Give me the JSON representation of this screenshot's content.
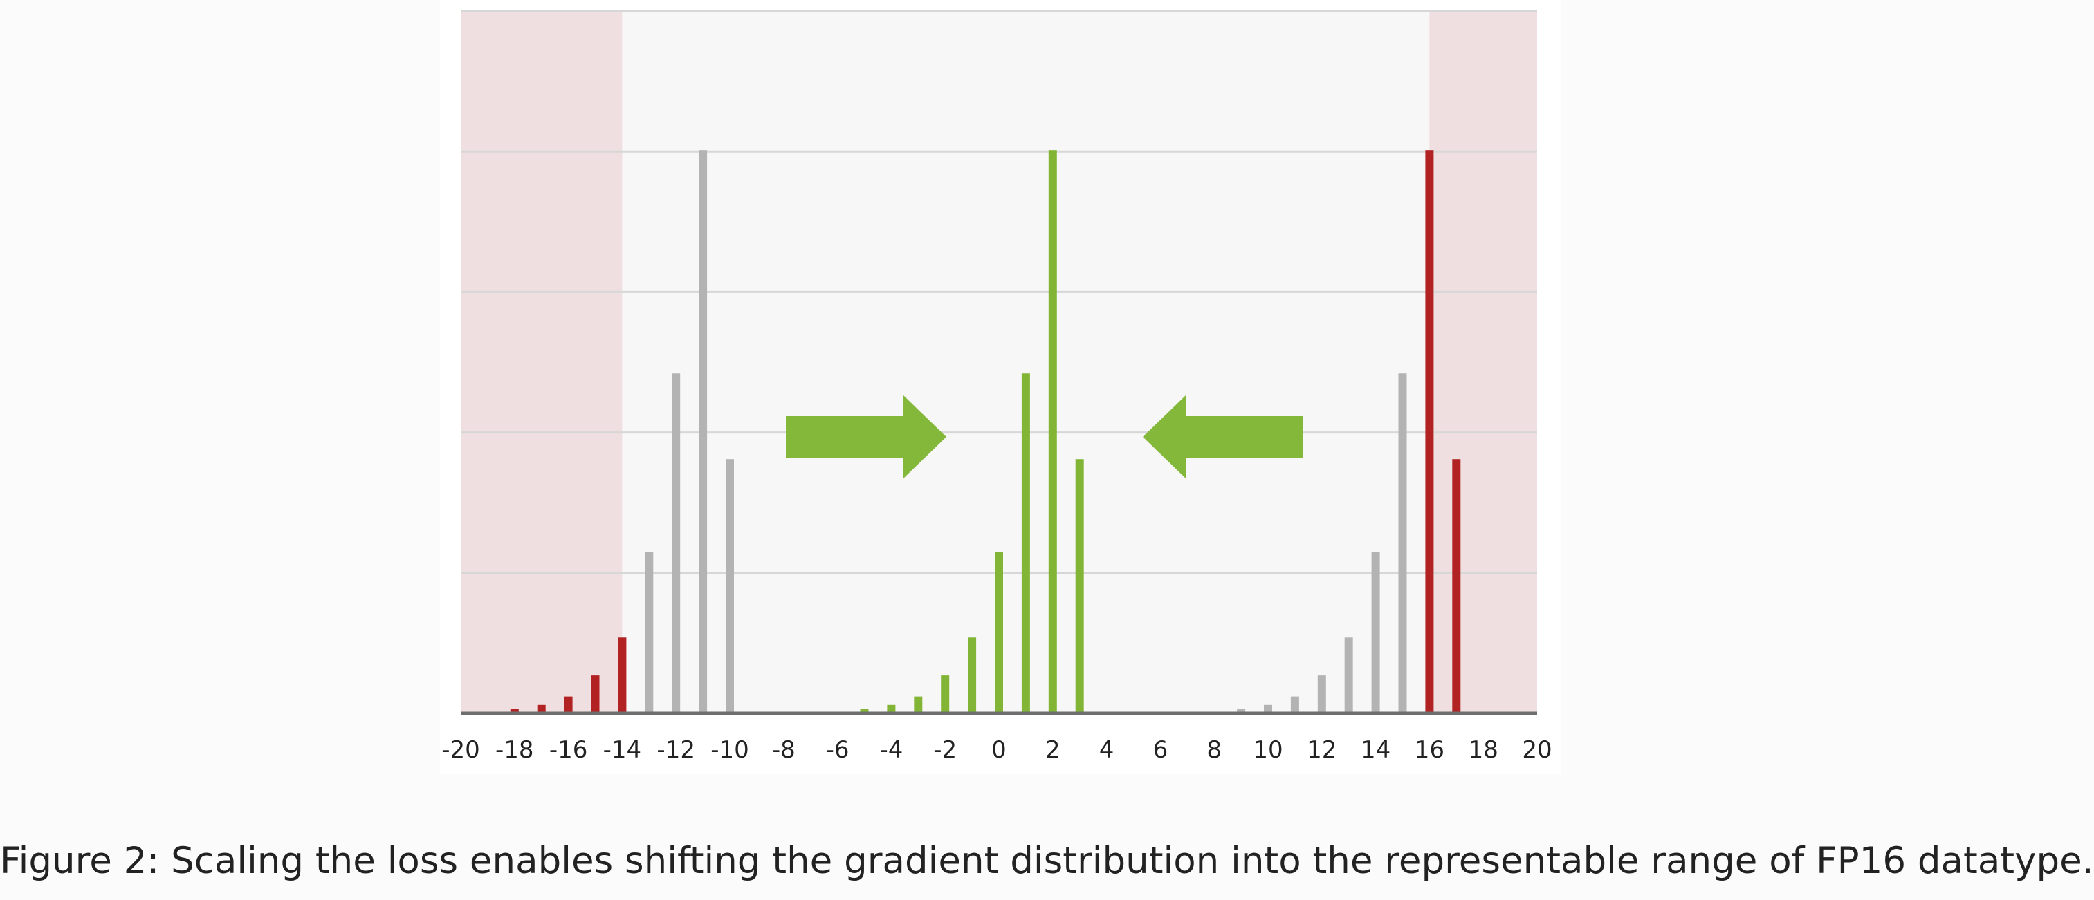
{
  "chart_data": {
    "type": "bar",
    "xlabel": "",
    "ylabel": "",
    "xlim": [
      -20,
      20
    ],
    "x_ticks": [
      -20,
      -18,
      -16,
      -14,
      -12,
      -10,
      -8,
      -6,
      -4,
      -2,
      0,
      2,
      4,
      6,
      8,
      10,
      12,
      14,
      16,
      18,
      20
    ],
    "ylim": [
      0,
      5
    ],
    "grid": true,
    "shaded_regions": [
      {
        "x_range": [
          -20,
          -14
        ],
        "color": "#efdfe0"
      },
      {
        "x_range": [
          16,
          20
        ],
        "color": "#efdfe0"
      }
    ],
    "series": [
      {
        "color": "#b22222",
        "x": [
          -18,
          -17,
          -16,
          -15,
          -14
        ],
        "values": [
          0.03,
          0.06,
          0.12,
          0.27,
          0.54
        ]
      },
      {
        "color": "#b3b3b3",
        "x": [
          -13,
          -12,
          -11,
          -10
        ],
        "values": [
          1.15,
          2.42,
          4.01,
          1.81
        ]
      },
      {
        "color": "#82b536",
        "x": [
          -5,
          -4,
          -3,
          -2,
          -1,
          0,
          1,
          2,
          3
        ],
        "values": [
          0.03,
          0.06,
          0.12,
          0.27,
          0.54,
          1.15,
          2.42,
          4.01,
          1.81
        ]
      },
      {
        "color": "#b3b3b3",
        "x": [
          9,
          10,
          11,
          12,
          13,
          14,
          15
        ],
        "values": [
          0.03,
          0.06,
          0.12,
          0.27,
          0.54,
          1.15,
          2.42
        ]
      },
      {
        "color": "#b22222",
        "x": [
          16,
          17
        ],
        "values": [
          4.01,
          1.81
        ]
      }
    ],
    "annotations": [
      {
        "shape": "arrow",
        "direction": "right",
        "color": "#84b83a"
      },
      {
        "shape": "arrow",
        "direction": "left",
        "color": "#84b83a"
      }
    ]
  },
  "caption": "Figure 2: Scaling the loss enables shifting the gradient distribution into the representable range of FP16 datatype."
}
